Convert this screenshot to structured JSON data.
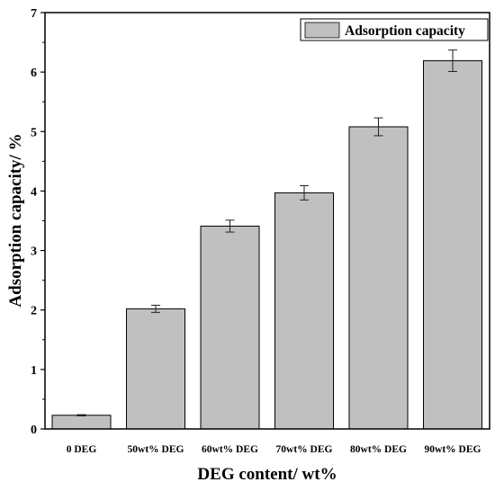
{
  "chart_data": {
    "type": "bar",
    "categories": [
      "0 DEG",
      "50wt% DEG",
      "60wt% DEG",
      "70wt% DEG",
      "80wt% DEG",
      "90wt% DEG"
    ],
    "series": [
      {
        "name": "Adsorption capacity",
        "values": [
          0.23,
          2.02,
          3.41,
          3.97,
          5.08,
          6.19
        ],
        "errors": [
          0.01,
          0.06,
          0.1,
          0.12,
          0.15,
          0.18
        ]
      }
    ],
    "xlabel": "DEG content/ wt%",
    "ylabel": "Adsorption capacity/ %",
    "ylim": [
      0,
      7
    ],
    "yticks": [
      "0",
      "1",
      "2",
      "3",
      "4",
      "5",
      "6",
      "7"
    ],
    "grid": false,
    "legend_position": "top-right",
    "colors": {
      "bar_fill": "#c0c0c0",
      "bar_stroke": "#000000"
    }
  }
}
